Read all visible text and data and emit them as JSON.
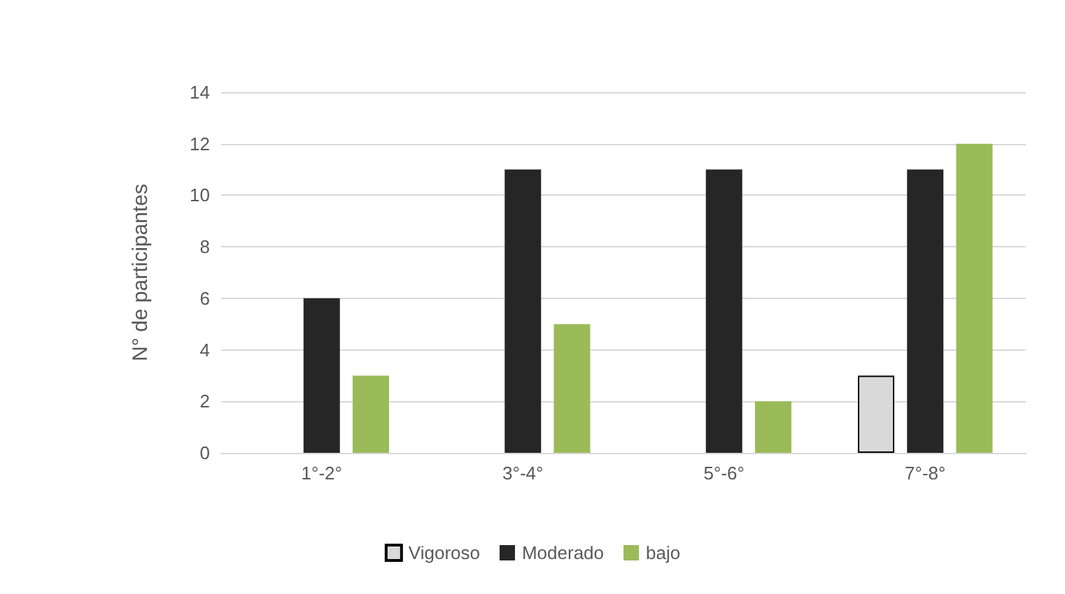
{
  "chart_data": {
    "type": "bar",
    "ylabel": "N° de participantes",
    "categories": [
      "1°-2°",
      "3°-4°",
      "5°-6°",
      "7°-8°"
    ],
    "series": [
      {
        "name": "Vigoroso",
        "color": "#d9d9d9",
        "values": [
          0,
          0,
          0,
          3
        ]
      },
      {
        "name": "Moderado",
        "color": "#262626",
        "values": [
          6,
          11,
          11,
          11
        ]
      },
      {
        "name": "bajo",
        "color": "#9bbb59",
        "values": [
          3,
          5,
          2,
          12
        ]
      }
    ],
    "ylim": [
      0,
      14
    ],
    "yticks": [
      0,
      2,
      4,
      6,
      8,
      10,
      12,
      14
    ],
    "grid": "y",
    "legend": "bottom"
  }
}
